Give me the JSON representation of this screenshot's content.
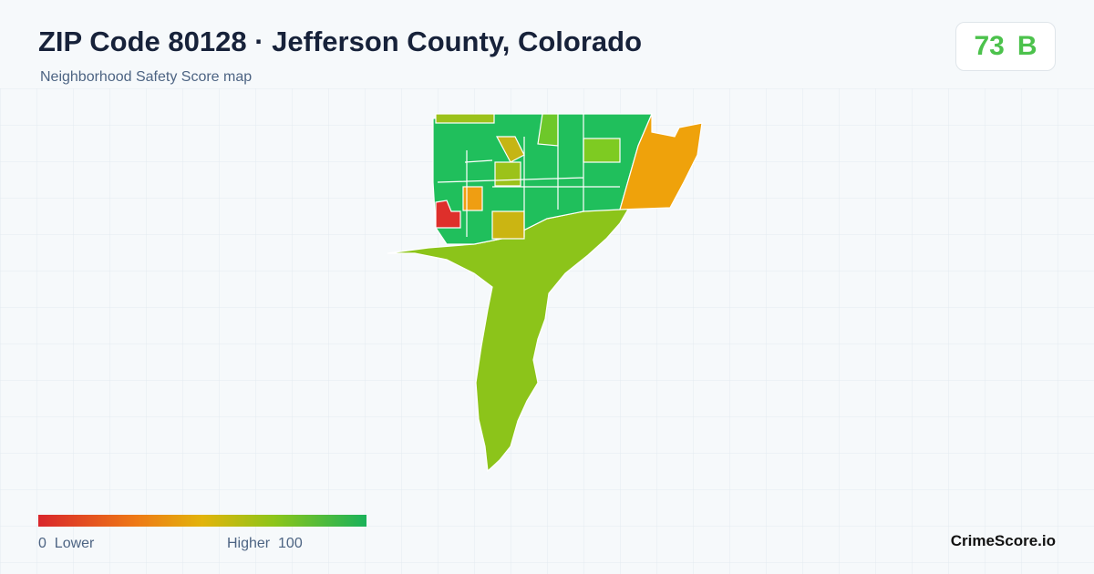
{
  "header": {
    "title": "ZIP Code 80128 · Jefferson County, Colorado",
    "subtitle": "Neighborhood Safety Score map"
  },
  "score": {
    "value": 73,
    "grade": "B"
  },
  "legend": {
    "min": 0,
    "min_label": "Lower",
    "max_label": "Higher",
    "max": 100
  },
  "brand": "CrimeScore.io"
}
